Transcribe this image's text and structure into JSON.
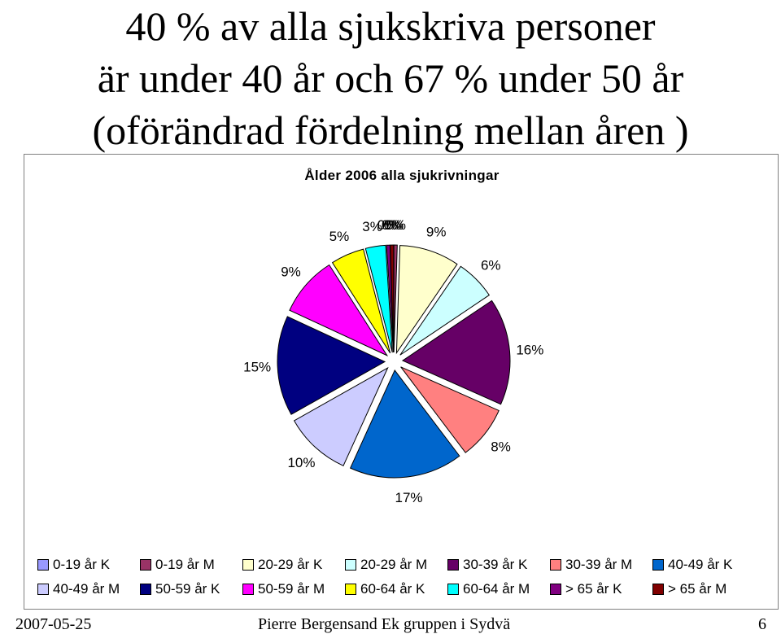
{
  "slide": {
    "title_lines": [
      "40 % av alla sjukskriva personer",
      "är under 40 år och 67 % under 50 år",
      "(oförändrad fördelning mellan åren )"
    ]
  },
  "chart_data": {
    "type": "pie",
    "title": "Ålder 2006 alla sjukrivningar",
    "exploded": true,
    "legend_position": "bottom",
    "slices": [
      {
        "name": "0-19 år K",
        "value": 0,
        "label": "0%",
        "color": "#9999ff"
      },
      {
        "name": "0-19 år M",
        "value": 0.5,
        "label": "0%",
        "color": "#993366"
      },
      {
        "name": "20-29 år K",
        "value": 9,
        "label": "9%",
        "color": "#ffffcc"
      },
      {
        "name": "20-29 år M",
        "value": 6,
        "label": "6%",
        "color": "#ccffff"
      },
      {
        "name": "30-39 år K",
        "value": 16,
        "label": "16%",
        "color": "#660066"
      },
      {
        "name": "30-39 år M",
        "value": 8,
        "label": "8%",
        "color": "#ff8080"
      },
      {
        "name": "40-49 år K",
        "value": 17,
        "label": "17%",
        "color": "#0066cc"
      },
      {
        "name": "40-49 år M",
        "value": 10,
        "label": "10%",
        "color": "#ccccff"
      },
      {
        "name": "50-59 år K",
        "value": 15,
        "label": "15%",
        "color": "#000080"
      },
      {
        "name": "50-59 år M",
        "value": 9,
        "label": "9%",
        "color": "#ff00ff"
      },
      {
        "name": "60-64 år K",
        "value": 5,
        "label": "5%",
        "color": "#ffff00"
      },
      {
        "name": "60-64 år M",
        "value": 3,
        "label": "3%",
        "color": "#00ffff"
      },
      {
        "name": "> 65 år K",
        "value": 0.5,
        "label": "0%",
        "color": "#800080"
      },
      {
        "name": "> 65 år M",
        "value": 0.5,
        "label": "0%",
        "color": "#800000"
      }
    ]
  },
  "footer": {
    "date": "2007-05-25",
    "author": "Pierre Bergensand Ek gruppen i Sydvä",
    "page": "6"
  }
}
